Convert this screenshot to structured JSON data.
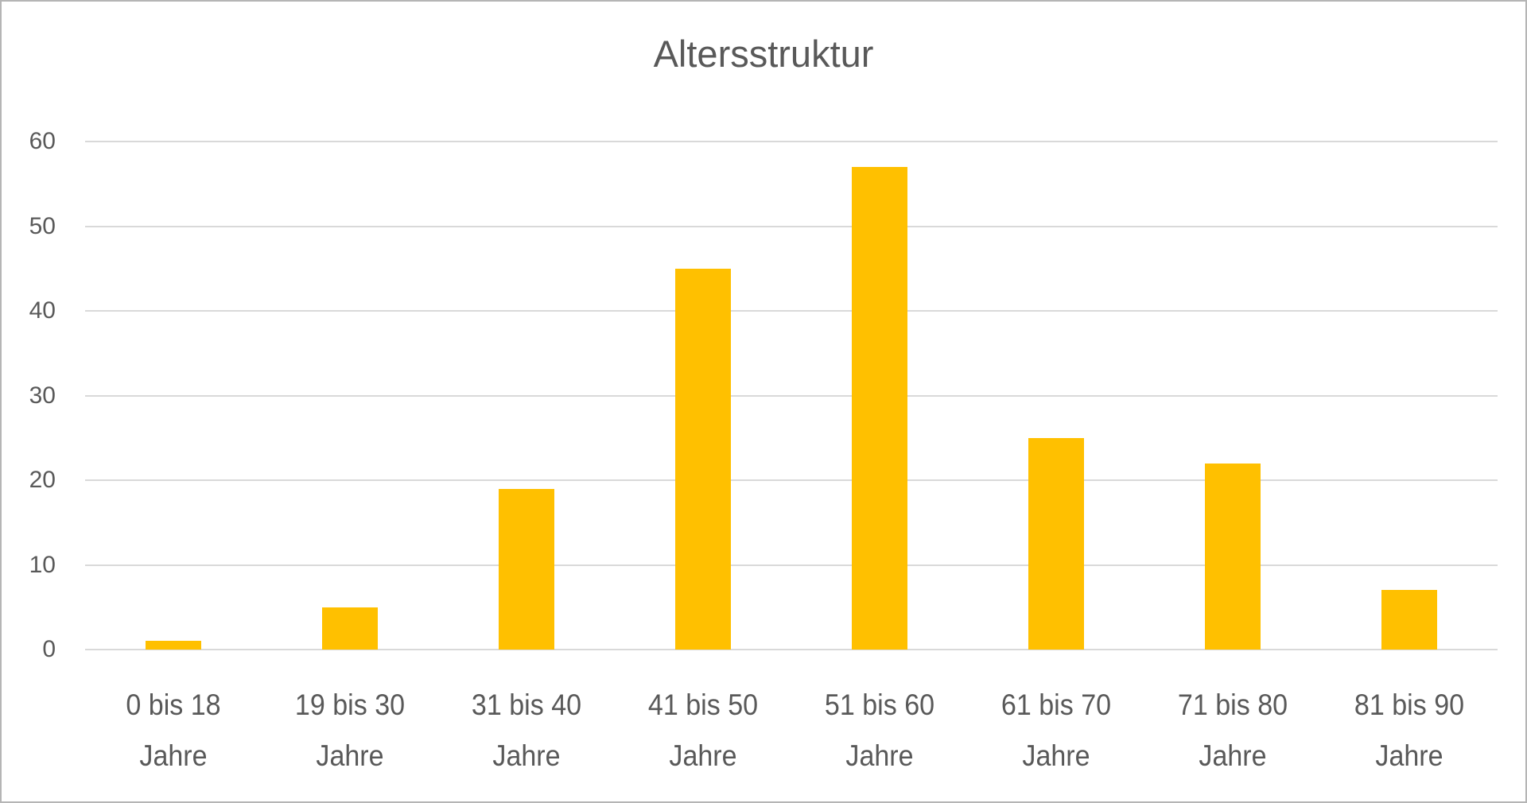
{
  "window": {
    "background": "#ffffff",
    "border_color": "#b5b5b5"
  },
  "chart_data": {
    "type": "bar",
    "title": "Altersstruktur",
    "categories": [
      "0 bis 18 Jahre",
      "19 bis 30 Jahre",
      "31 bis 40 Jahre",
      "41 bis 50 Jahre",
      "51 bis 60 Jahre",
      "61 bis 70 Jahre",
      "71 bis 80 Jahre",
      "81 bis 90 Jahre"
    ],
    "values": [
      1,
      5,
      19,
      45,
      57,
      25,
      22,
      7
    ],
    "xlabel": "",
    "ylabel": "",
    "ylim": [
      0,
      60
    ],
    "yticks": [
      0,
      10,
      20,
      30,
      40,
      50,
      60
    ],
    "grid": "horizontal",
    "legend": "none",
    "bar_color": "#FFC000",
    "gridline_color": "#D9D9D9",
    "axis_text_color": "#595959",
    "title_color": "#595959"
  }
}
